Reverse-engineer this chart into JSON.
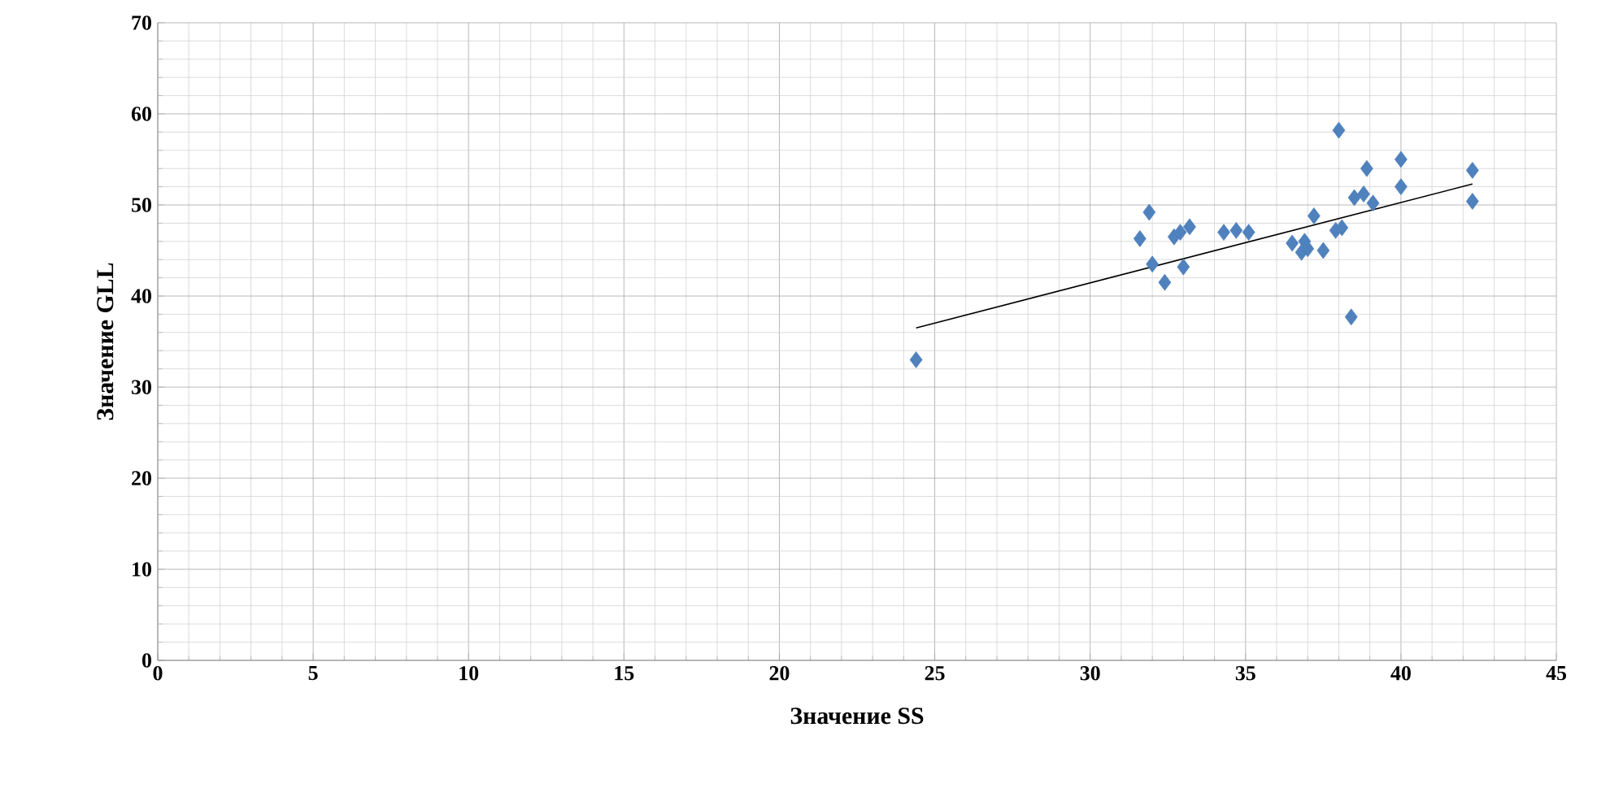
{
  "chart_data": {
    "type": "scatter",
    "xlabel": "Значение SS",
    "ylabel": "Значение GLL",
    "xlim": [
      0,
      45
    ],
    "xticks": [
      0,
      5,
      10,
      15,
      20,
      25,
      30,
      35,
      40,
      45
    ],
    "ylim": [
      0,
      70
    ],
    "yticks": [
      0,
      10,
      20,
      30,
      40,
      50,
      60,
      70
    ],
    "grid": true,
    "marker": "diamond",
    "series": [
      {
        "color": "#4f81bd",
        "x": [
          24.4,
          31.6,
          31.9,
          32.0,
          32.4,
          32.7,
          32.9,
          33.0,
          33.2,
          34.3,
          34.7,
          35.1,
          36.5,
          36.8,
          36.9,
          37.0,
          37.2,
          37.5,
          37.9,
          38.0,
          38.1,
          38.4,
          38.5,
          38.8,
          38.9,
          39.1,
          40.0,
          40.0,
          42.3,
          42.3
        ],
        "values": [
          33.0,
          46.3,
          49.2,
          43.5,
          41.5,
          46.5,
          47.0,
          43.2,
          47.6,
          47.0,
          47.2,
          47.0,
          45.8,
          44.8,
          46.0,
          45.2,
          48.8,
          45.0,
          47.2,
          58.2,
          47.5,
          37.7,
          50.8,
          51.2,
          54.0,
          50.2,
          55.0,
          52.0,
          53.8,
          50.4
        ]
      },
      {
        "type": "line",
        "color": "#000000",
        "marker": "none",
        "x": [
          24.4,
          42.3
        ],
        "values": [
          36.5,
          52.3
        ]
      }
    ]
  }
}
